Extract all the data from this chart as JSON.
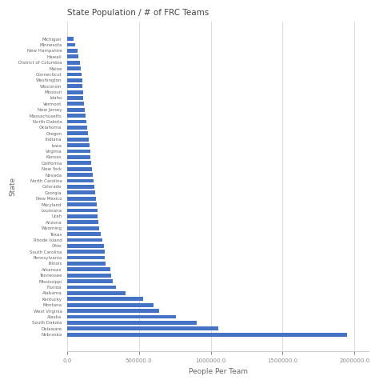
{
  "title": "State Population / # of FRC Teams",
  "xlabel": "People Per Team",
  "ylabel": "State",
  "bar_color": "#4472C4",
  "background_color": "#ffffff",
  "grid_color": "#cccccc",
  "categories": [
    "Michigan",
    "Minnesota",
    "New Hampshire",
    "Hawaii",
    "District of Columbia",
    "Maine",
    "Connecticut",
    "Washington",
    "Wisconsin",
    "Missouri",
    "Idaho",
    "Vermont",
    "New Jersey",
    "Massachusetts",
    "North Dakota",
    "Oklahoma",
    "Oregon",
    "Indiana",
    "Iowa",
    "Virginia",
    "Kansas",
    "California",
    "New York",
    "Nevada",
    "North Carolina",
    "Colorado",
    "Georgia",
    "New Mexico",
    "Maryland",
    "Louisiana",
    "Utah",
    "Arizona",
    "Wyoming",
    "Texas",
    "Rhode Island",
    "Ohio",
    "South Carolina",
    "Pennsylvania",
    "Illinois",
    "Arkansas",
    "Tennessee",
    "Mississippi",
    "Florida",
    "Alabama",
    "Kentucky",
    "Montana",
    "West Virginia",
    "Alaska",
    "South Dakota",
    "Delaware",
    "Nebraska"
  ],
  "values": [
    45000,
    55000,
    75000,
    80000,
    90000,
    95000,
    100000,
    105000,
    108000,
    112000,
    115000,
    120000,
    125000,
    130000,
    135000,
    140000,
    145000,
    150000,
    155000,
    160000,
    165000,
    170000,
    175000,
    180000,
    185000,
    190000,
    195000,
    200000,
    205000,
    210000,
    215000,
    220000,
    225000,
    235000,
    245000,
    255000,
    260000,
    265000,
    270000,
    300000,
    310000,
    320000,
    340000,
    410000,
    530000,
    600000,
    640000,
    760000,
    900000,
    1050000,
    1950000
  ]
}
